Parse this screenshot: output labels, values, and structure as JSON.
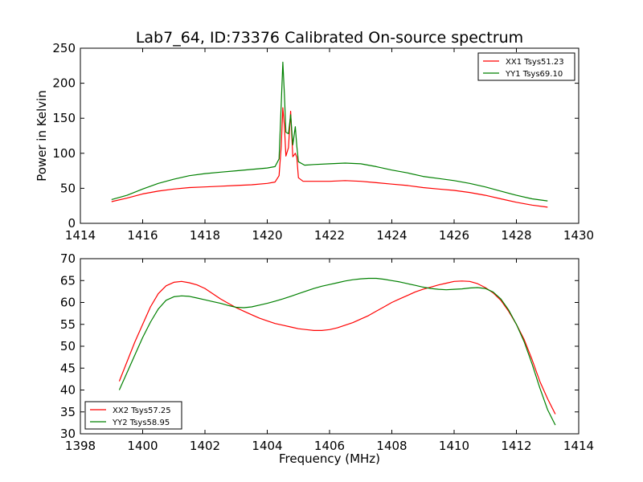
{
  "figure": {
    "title": "Lab7_64, ID:73376 Calibrated On-source spectrum",
    "xlabel": "Frequency (MHz)"
  },
  "colors": {
    "red": "#ff0000",
    "green": "#008000"
  },
  "chart_data": [
    {
      "type": "line",
      "title": "Lab7_64, ID:73376 Calibrated On-source spectrum",
      "xlabel": "",
      "ylabel": "Power in Kelvin",
      "xlim": [
        1414,
        1430
      ],
      "ylim": [
        0,
        250
      ],
      "xticks": [
        1414,
        1416,
        1418,
        1420,
        1422,
        1424,
        1426,
        1428,
        1430
      ],
      "yticks": [
        0,
        50,
        100,
        150,
        200,
        250
      ],
      "grid": false,
      "legend": "top-right",
      "series": [
        {
          "name": "XX1 Tsys51.23",
          "color": "#ff0000",
          "points": [
            [
              1415.0,
              31
            ],
            [
              1415.5,
              36
            ],
            [
              1416.0,
              42
            ],
            [
              1416.5,
              46
            ],
            [
              1417.0,
              49
            ],
            [
              1417.5,
              51
            ],
            [
              1418.0,
              52
            ],
            [
              1418.5,
              53
            ],
            [
              1419.0,
              54
            ],
            [
              1419.5,
              55
            ],
            [
              1420.0,
              57
            ],
            [
              1420.25,
              59
            ],
            [
              1420.38,
              68
            ],
            [
              1420.45,
              110
            ],
            [
              1420.5,
              165
            ],
            [
              1420.55,
              140
            ],
            [
              1420.6,
              96
            ],
            [
              1420.68,
              108
            ],
            [
              1420.75,
              160
            ],
            [
              1420.82,
              95
            ],
            [
              1420.9,
              100
            ],
            [
              1420.95,
              94
            ],
            [
              1421.0,
              65
            ],
            [
              1421.15,
              60
            ],
            [
              1421.5,
              60
            ],
            [
              1422.0,
              60
            ],
            [
              1422.5,
              61
            ],
            [
              1423.0,
              60
            ],
            [
              1423.5,
              58
            ],
            [
              1424.0,
              56
            ],
            [
              1424.5,
              54
            ],
            [
              1425.0,
              51
            ],
            [
              1425.5,
              49
            ],
            [
              1426.0,
              47
            ],
            [
              1426.5,
              44
            ],
            [
              1427.0,
              40
            ],
            [
              1427.5,
              35
            ],
            [
              1428.0,
              30
            ],
            [
              1428.5,
              26
            ],
            [
              1429.0,
              23
            ]
          ]
        },
        {
          "name": "YY1 Tsys69.10",
          "color": "#008000",
          "points": [
            [
              1415.0,
              34
            ],
            [
              1415.5,
              40
            ],
            [
              1416.0,
              49
            ],
            [
              1416.5,
              57
            ],
            [
              1417.0,
              63
            ],
            [
              1417.5,
              68
            ],
            [
              1418.0,
              71
            ],
            [
              1418.5,
              73
            ],
            [
              1419.0,
              75
            ],
            [
              1419.5,
              77
            ],
            [
              1420.0,
              79
            ],
            [
              1420.25,
              81
            ],
            [
              1420.38,
              92
            ],
            [
              1420.45,
              170
            ],
            [
              1420.5,
              230
            ],
            [
              1420.55,
              185
            ],
            [
              1420.6,
              130
            ],
            [
              1420.68,
              128
            ],
            [
              1420.75,
              155
            ],
            [
              1420.82,
              112
            ],
            [
              1420.9,
              138
            ],
            [
              1420.95,
              110
            ],
            [
              1421.0,
              88
            ],
            [
              1421.2,
              83
            ],
            [
              1421.5,
              84
            ],
            [
              1422.0,
              85
            ],
            [
              1422.5,
              86
            ],
            [
              1423.0,
              85
            ],
            [
              1423.5,
              81
            ],
            [
              1424.0,
              76
            ],
            [
              1424.5,
              72
            ],
            [
              1425.0,
              67
            ],
            [
              1425.5,
              64
            ],
            [
              1426.0,
              61
            ],
            [
              1426.5,
              57
            ],
            [
              1427.0,
              52
            ],
            [
              1427.5,
              46
            ],
            [
              1428.0,
              40
            ],
            [
              1428.5,
              35
            ],
            [
              1429.0,
              32
            ]
          ]
        }
      ]
    },
    {
      "type": "line",
      "xlabel": "Frequency (MHz)",
      "ylabel": "",
      "xlim": [
        1398,
        1414
      ],
      "ylim": [
        30,
        70
      ],
      "xticks": [
        1398,
        1400,
        1402,
        1404,
        1406,
        1408,
        1410,
        1412,
        1414
      ],
      "yticks": [
        30,
        35,
        40,
        45,
        50,
        55,
        60,
        65,
        70
      ],
      "grid": false,
      "legend": "bottom-left",
      "series": [
        {
          "name": "XX2 Tsys57.25",
          "color": "#ff0000",
          "points": [
            [
              1399.25,
              42
            ],
            [
              1399.5,
              46.5
            ],
            [
              1399.75,
              51
            ],
            [
              1400.0,
              55
            ],
            [
              1400.25,
              59
            ],
            [
              1400.5,
              62
            ],
            [
              1400.75,
              63.8
            ],
            [
              1401.0,
              64.6
            ],
            [
              1401.25,
              64.8
            ],
            [
              1401.5,
              64.5
            ],
            [
              1401.75,
              64
            ],
            [
              1402.0,
              63.2
            ],
            [
              1402.25,
              62
            ],
            [
              1402.5,
              60.8
            ],
            [
              1402.75,
              59.8
            ],
            [
              1403.0,
              58.8
            ],
            [
              1403.25,
              58
            ],
            [
              1403.5,
              57.2
            ],
            [
              1403.75,
              56.4
            ],
            [
              1404.0,
              55.8
            ],
            [
              1404.25,
              55.2
            ],
            [
              1404.5,
              54.8
            ],
            [
              1404.75,
              54.4
            ],
            [
              1405.0,
              54
            ],
            [
              1405.25,
              53.8
            ],
            [
              1405.5,
              53.6
            ],
            [
              1405.75,
              53.6
            ],
            [
              1406.0,
              53.8
            ],
            [
              1406.25,
              54.2
            ],
            [
              1406.5,
              54.8
            ],
            [
              1406.75,
              55.4
            ],
            [
              1407.0,
              56.2
            ],
            [
              1407.25,
              57
            ],
            [
              1407.5,
              58
            ],
            [
              1407.75,
              59
            ],
            [
              1408.0,
              60
            ],
            [
              1408.25,
              60.8
            ],
            [
              1408.5,
              61.6
            ],
            [
              1408.75,
              62.4
            ],
            [
              1409.0,
              63
            ],
            [
              1409.25,
              63.5
            ],
            [
              1409.5,
              64
            ],
            [
              1409.75,
              64.4
            ],
            [
              1410.0,
              64.8
            ],
            [
              1410.25,
              64.9
            ],
            [
              1410.5,
              64.8
            ],
            [
              1410.75,
              64.3
            ],
            [
              1411.0,
              63.4
            ],
            [
              1411.25,
              62.2
            ],
            [
              1411.5,
              60.5
            ],
            [
              1411.75,
              58
            ],
            [
              1412.0,
              55
            ],
            [
              1412.25,
              51.5
            ],
            [
              1412.5,
              47
            ],
            [
              1412.75,
              42
            ],
            [
              1413.0,
              38
            ],
            [
              1413.25,
              34.5
            ]
          ]
        },
        {
          "name": "YY2 Tsys58.95",
          "color": "#008000",
          "points": [
            [
              1399.25,
              40
            ],
            [
              1399.5,
              44
            ],
            [
              1399.75,
              48
            ],
            [
              1400.0,
              52
            ],
            [
              1400.25,
              55.5
            ],
            [
              1400.5,
              58.5
            ],
            [
              1400.75,
              60.5
            ],
            [
              1401.0,
              61.3
            ],
            [
              1401.25,
              61.5
            ],
            [
              1401.5,
              61.4
            ],
            [
              1401.75,
              61
            ],
            [
              1402.0,
              60.6
            ],
            [
              1402.25,
              60.2
            ],
            [
              1402.5,
              59.8
            ],
            [
              1402.75,
              59.3
            ],
            [
              1403.0,
              58.9
            ],
            [
              1403.25,
              58.8
            ],
            [
              1403.5,
              59
            ],
            [
              1403.75,
              59.4
            ],
            [
              1404.0,
              59.8
            ],
            [
              1404.25,
              60.3
            ],
            [
              1404.5,
              60.8
            ],
            [
              1404.75,
              61.4
            ],
            [
              1405.0,
              62
            ],
            [
              1405.25,
              62.6
            ],
            [
              1405.5,
              63.2
            ],
            [
              1405.75,
              63.7
            ],
            [
              1406.0,
              64.1
            ],
            [
              1406.25,
              64.5
            ],
            [
              1406.5,
              64.9
            ],
            [
              1406.75,
              65.2
            ],
            [
              1407.0,
              65.4
            ],
            [
              1407.25,
              65.5
            ],
            [
              1407.5,
              65.5
            ],
            [
              1407.75,
              65.3
            ],
            [
              1408.0,
              65
            ],
            [
              1408.25,
              64.7
            ],
            [
              1408.5,
              64.3
            ],
            [
              1408.75,
              63.9
            ],
            [
              1409.0,
              63.5
            ],
            [
              1409.25,
              63.2
            ],
            [
              1409.5,
              63
            ],
            [
              1409.75,
              62.9
            ],
            [
              1410.0,
              63
            ],
            [
              1410.25,
              63.1
            ],
            [
              1410.5,
              63.3
            ],
            [
              1410.75,
              63.4
            ],
            [
              1411.0,
              63.2
            ],
            [
              1411.25,
              62.4
            ],
            [
              1411.5,
              60.8
            ],
            [
              1411.75,
              58.3
            ],
            [
              1412.0,
              55
            ],
            [
              1412.25,
              51
            ],
            [
              1412.5,
              46
            ],
            [
              1412.75,
              40.5
            ],
            [
              1413.0,
              35.5
            ],
            [
              1413.25,
              32
            ]
          ]
        }
      ]
    }
  ]
}
